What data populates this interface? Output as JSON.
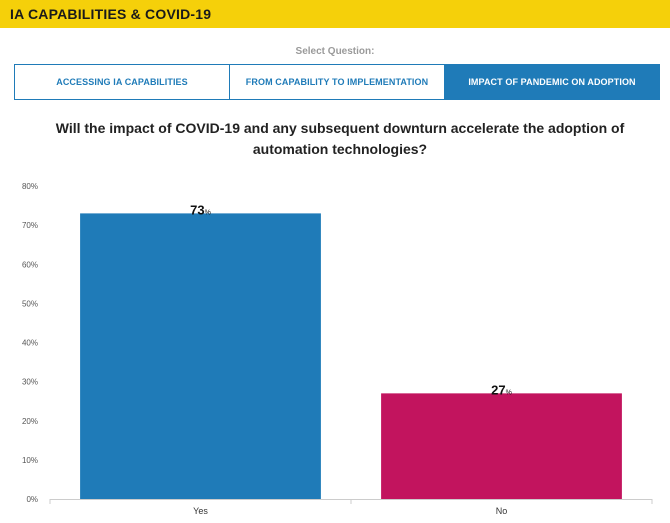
{
  "header": {
    "title": "IA CAPABILITIES & COVID-19"
  },
  "selector": {
    "label": "Select Question:",
    "tabs": [
      {
        "label": "ACCESSING IA CAPABILITIES",
        "active": false
      },
      {
        "label": "FROM CAPABILITY TO IMPLEMENTATION",
        "active": false
      },
      {
        "label": "IMPACT OF PANDEMIC ON ADOPTION",
        "active": true
      }
    ]
  },
  "question": "Will the impact of COVID-19 and any subsequent downturn accelerate the adoption of automation technologies?",
  "chart_data": {
    "type": "bar",
    "categories": [
      "Yes",
      "No"
    ],
    "values": [
      73,
      27
    ],
    "value_labels": [
      "73",
      "27"
    ],
    "value_unit": "%",
    "colors": [
      "#1f7bb8",
      "#c2145e"
    ],
    "ylim": [
      0,
      80
    ],
    "yticks": [
      0,
      10,
      20,
      30,
      40,
      50,
      60,
      70,
      80
    ],
    "ytick_labels": [
      "0%",
      "10%",
      "20%",
      "30%",
      "40%",
      "50%",
      "60%",
      "70%",
      "80%"
    ],
    "title": "",
    "xlabel": "",
    "ylabel": "",
    "grid": false,
    "legend": "none"
  }
}
